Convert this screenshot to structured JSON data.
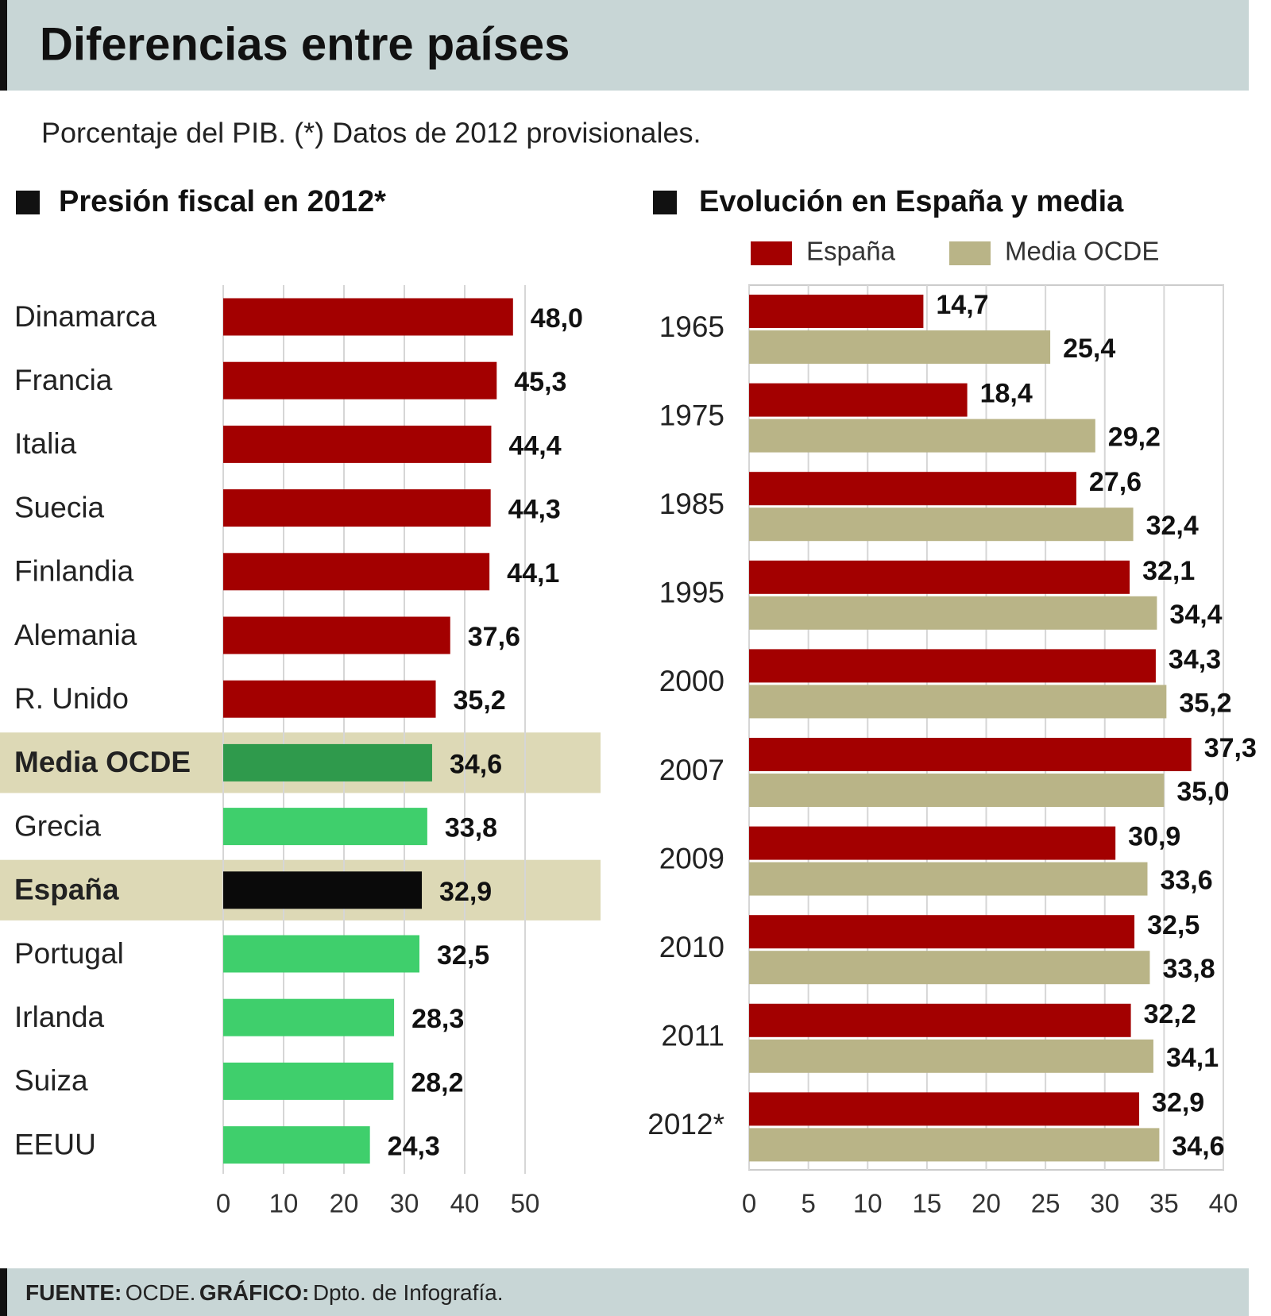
{
  "title": "Diferencias entre países",
  "subtitle": "Porcentaje del PIB. (*) Datos de 2012 provisionales.",
  "footer": {
    "source_label": "FUENTE:",
    "source": "OCDE.",
    "graphic_label": "GRÁFICO:",
    "graphic": "Dpto. de Infografía."
  },
  "chart_data": [
    {
      "type": "bar",
      "title": "Presión fiscal en 2012*",
      "categories": [
        "Dinamarca",
        "Francia",
        "Italia",
        "Suecia",
        "Finlandia",
        "Alemania",
        "R. Unido",
        "Media OCDE",
        "Grecia",
        "España",
        "Portugal",
        "Irlanda",
        "Suiza",
        "EEUU"
      ],
      "values": [
        48.0,
        45.3,
        44.4,
        44.3,
        44.1,
        37.6,
        35.2,
        34.6,
        33.8,
        32.9,
        32.5,
        28.3,
        28.2,
        24.3
      ],
      "value_labels": [
        "48,0",
        "45,3",
        "44,4",
        "44,3",
        "44,1",
        "37,6",
        "35,2",
        "34,6",
        "33,8",
        "32,9",
        "32,5",
        "28,3",
        "28,2",
        "24,3"
      ],
      "colors": [
        "#a30000",
        "#a30000",
        "#a30000",
        "#a30000",
        "#a30000",
        "#a30000",
        "#a30000",
        "#2f9a4c",
        "#3fcf6c",
        "#0a0a0a",
        "#3fcf6c",
        "#3fcf6c",
        "#3fcf6c",
        "#3fcf6c"
      ],
      "highlighted": [
        false,
        false,
        false,
        false,
        false,
        false,
        false,
        true,
        false,
        true,
        false,
        false,
        false,
        false
      ],
      "highlight_color": "#ddd9b6",
      "xlim": [
        0,
        50
      ],
      "xticks": [
        0,
        10,
        20,
        30,
        40,
        50
      ],
      "grid": true
    },
    {
      "type": "grouped-bar",
      "title": "Evolución en España y media",
      "categories": [
        "1965",
        "1975",
        "1985",
        "1995",
        "2000",
        "2007",
        "2009",
        "2010",
        "2011",
        "2012*"
      ],
      "series": [
        {
          "name": "España",
          "color": "#a30000",
          "values": [
            14.7,
            18.4,
            27.6,
            32.1,
            34.3,
            37.3,
            30.9,
            32.5,
            32.2,
            32.9
          ],
          "value_labels": [
            "14,7",
            "18,4",
            "27,6",
            "32,1",
            "34,3",
            "37,3",
            "30,9",
            "32,5",
            "32,2",
            "32,9"
          ]
        },
        {
          "name": "Media OCDE",
          "color": "#b9b487",
          "values": [
            25.4,
            29.2,
            32.4,
            34.4,
            35.2,
            35.0,
            33.6,
            33.8,
            34.1,
            34.6
          ],
          "value_labels": [
            "25,4",
            "29,2",
            "32,4",
            "34,4",
            "35,2",
            "35,0",
            "33,6",
            "33,8",
            "34,1",
            "34,6"
          ]
        }
      ],
      "xlim": [
        0,
        40
      ],
      "xticks": [
        0,
        5,
        10,
        15,
        20,
        25,
        30,
        35,
        40
      ],
      "grid": true,
      "legend": "top"
    }
  ]
}
